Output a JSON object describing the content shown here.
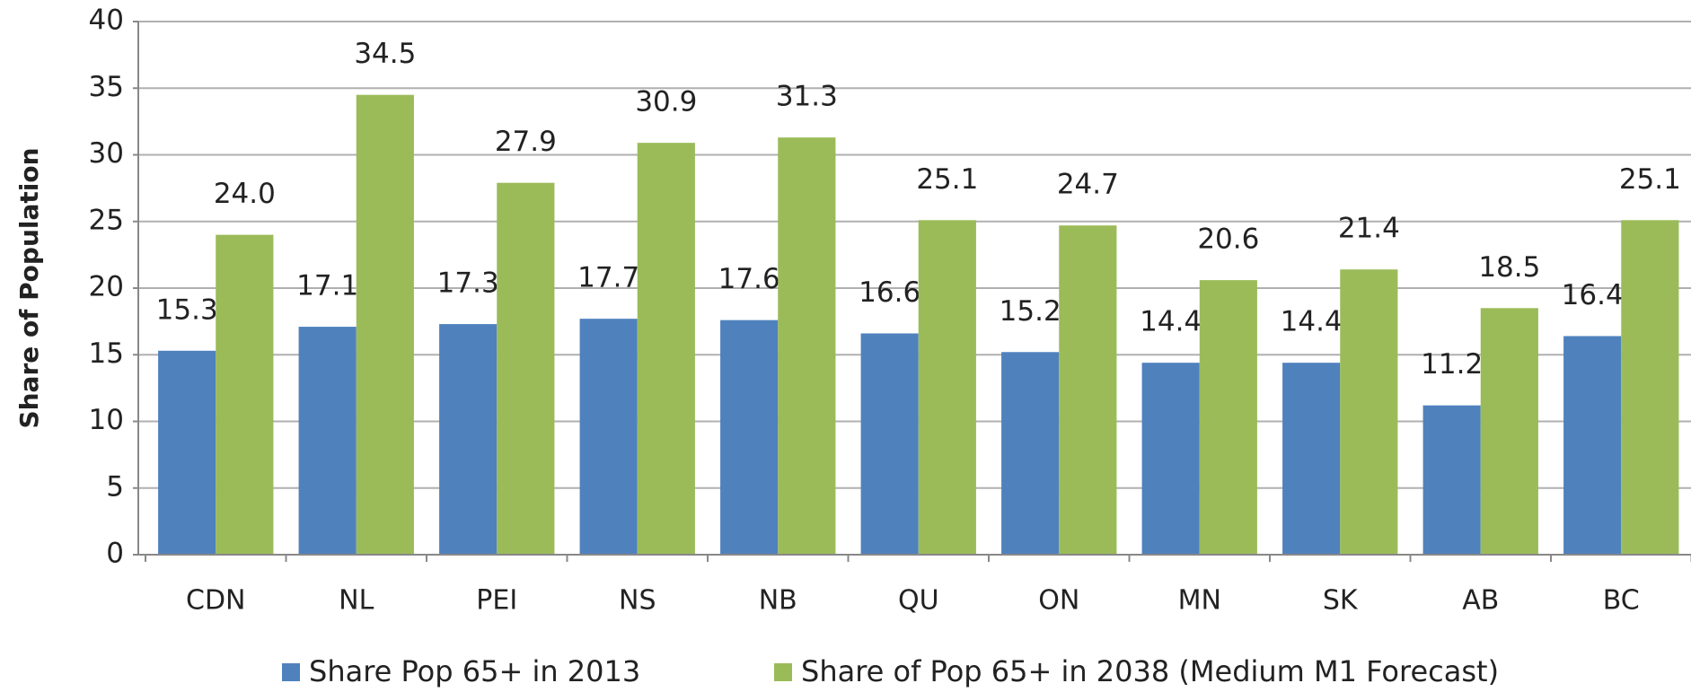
{
  "chart_data": {
    "type": "bar",
    "y_label": "Share of Population",
    "categories": [
      "CDN",
      "NL",
      "PEI",
      "NS",
      "NB",
      "QU",
      "ON",
      "MN",
      "SK",
      "AB",
      "BC"
    ],
    "series": [
      {
        "name": "Share Pop 65+ in 2013",
        "color": "#4f81bd",
        "values": [
          15.3,
          17.1,
          17.3,
          17.7,
          17.6,
          16.6,
          15.2,
          14.4,
          14.4,
          11.2,
          16.4
        ],
        "value_labels": [
          "15.3",
          "17.1",
          "17.3",
          "17.7",
          "17.6",
          "16.6",
          "15.2",
          "14.4",
          "14.4",
          "11.2",
          "16.4"
        ]
      },
      {
        "name": "Share of Pop 65+ in 2038 (Medium M1 Forecast)",
        "color": "#9bbb59",
        "values": [
          24.0,
          34.5,
          27.9,
          30.9,
          31.3,
          25.1,
          24.7,
          20.6,
          21.4,
          18.5,
          25.1
        ],
        "value_labels": [
          "24.0",
          "34.5",
          "27.9",
          "30.9",
          "31.3",
          "25.1",
          "24.7",
          "20.6",
          "21.4",
          "18.5",
          "25.1"
        ]
      }
    ],
    "ylim": [
      0,
      40
    ],
    "yticks": [
      0,
      5,
      10,
      15,
      20,
      25,
      30,
      35,
      40
    ],
    "grid": true,
    "legend": "bottom"
  }
}
